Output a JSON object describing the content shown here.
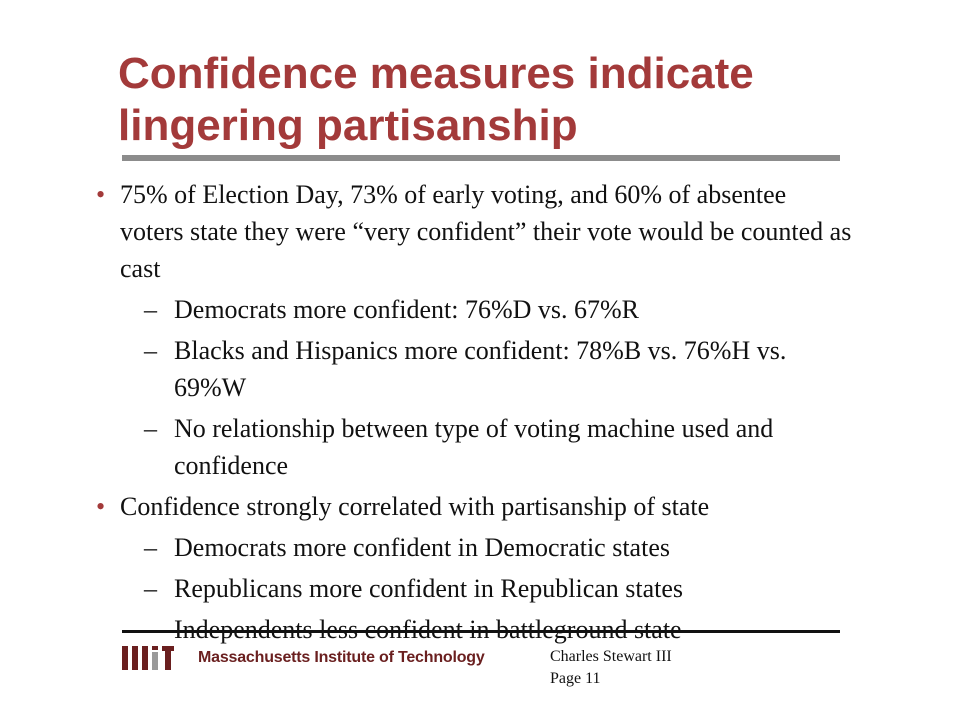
{
  "slide": {
    "title": "Confidence measures indicate lingering partisanship",
    "bullets": [
      {
        "marker": "•",
        "text": "75% of Election Day, 73% of early voting, and 60% of absentee voters state they were “very confident” their vote would be counted as cast",
        "subs": [
          {
            "marker": "–",
            "text": "Democrats more confident:  76%D vs. 67%R"
          },
          {
            "marker": "–",
            "text": "Blacks and Hispanics more confident:  78%B vs. 76%H vs. 69%W"
          },
          {
            "marker": "–",
            "text": "No relationship between type of voting machine used and confidence"
          }
        ]
      },
      {
        "marker": "•",
        "text": "Confidence strongly correlated with partisanship of state",
        "subs": [
          {
            "marker": "–",
            "text": "Democrats more confident in Democratic states"
          },
          {
            "marker": "–",
            "text": "Republicans more confident in Republican states"
          },
          {
            "marker": "–",
            "text": "Independents less confident in battleground state"
          }
        ]
      }
    ]
  },
  "footer": {
    "logo_text": "Massachusetts Institute of Technology",
    "author": "Charles Stewart III",
    "page": "Page 11"
  },
  "colors": {
    "title": "#a33a3a",
    "title_rule": "#8c8c8c",
    "logo_dark": "#6a1f1f",
    "logo_gray": "#9a9a9a"
  },
  "icons": {
    "logo": "mit-logo-icon"
  }
}
